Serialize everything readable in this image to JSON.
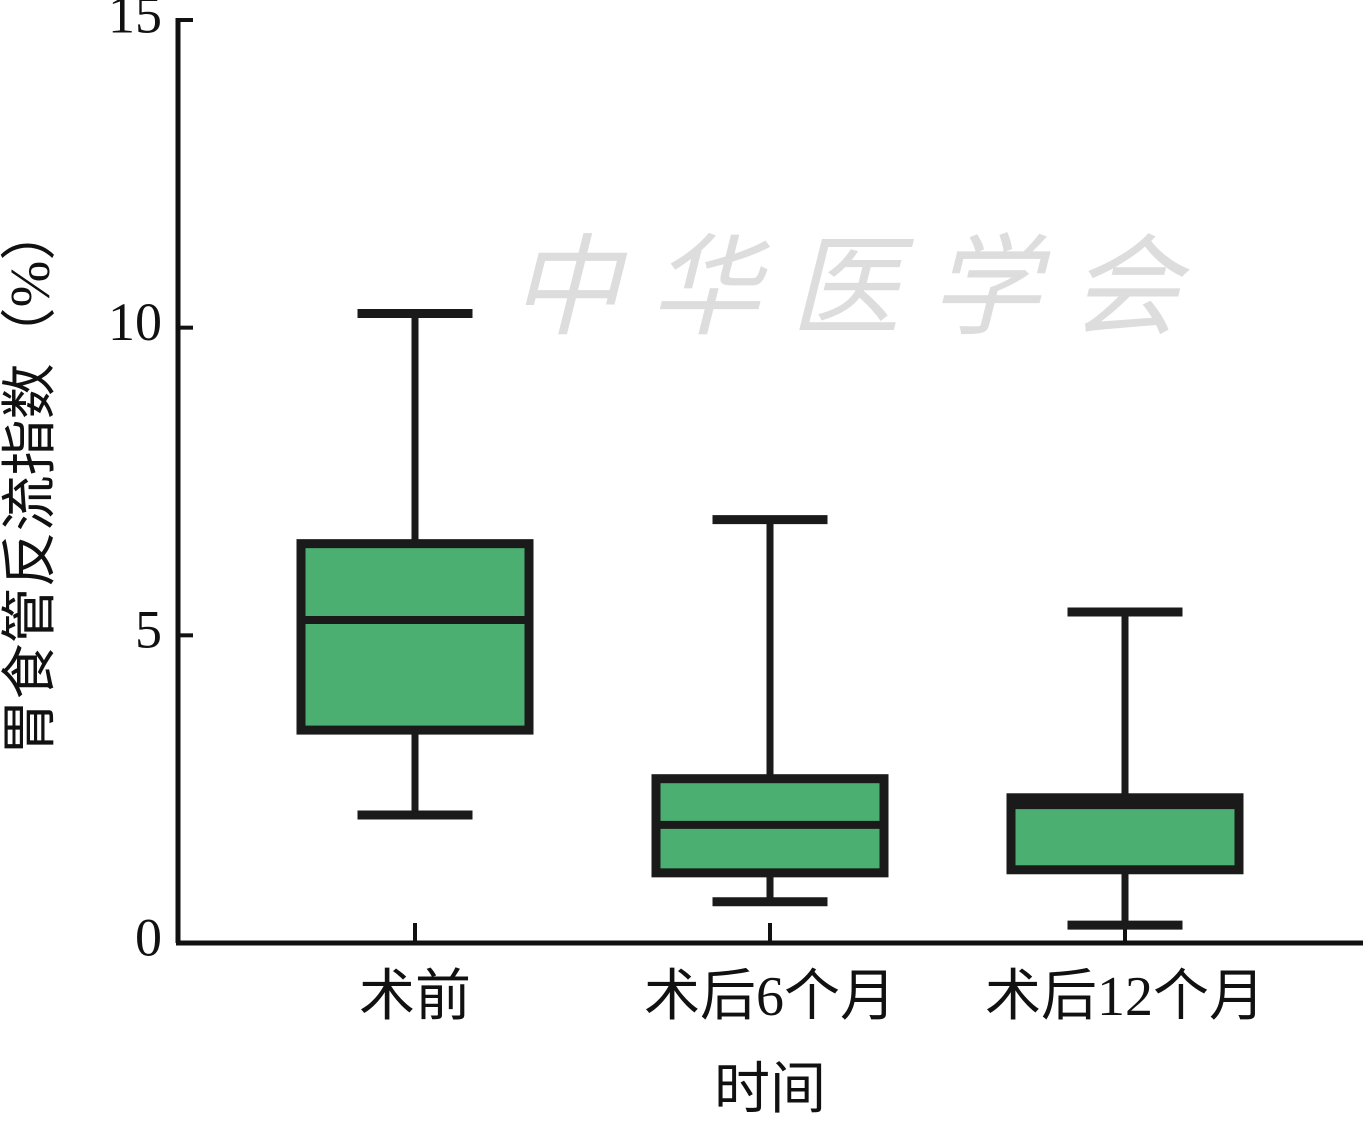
{
  "chart_data": {
    "type": "box",
    "y_label": "胃食管反流指数（%）",
    "x_label": "时间",
    "watermark": "中华医学会",
    "categories": [
      "术前",
      "术后6个月",
      "术后12个月"
    ],
    "boxes": [
      {
        "min": 2.08,
        "q1": 3.46,
        "median": 5.25,
        "q3": 6.49,
        "max": 10.23
      },
      {
        "min": 0.67,
        "q1": 1.14,
        "median": 1.92,
        "q3": 2.67,
        "max": 6.88
      },
      {
        "min": 0.29,
        "q1": 1.19,
        "median": 2.24,
        "q3": 2.36,
        "max": 5.38
      }
    ],
    "color": "#4caf72",
    "ylim": [
      0,
      15
    ],
    "yticks": [
      0,
      5,
      10,
      15
    ]
  }
}
